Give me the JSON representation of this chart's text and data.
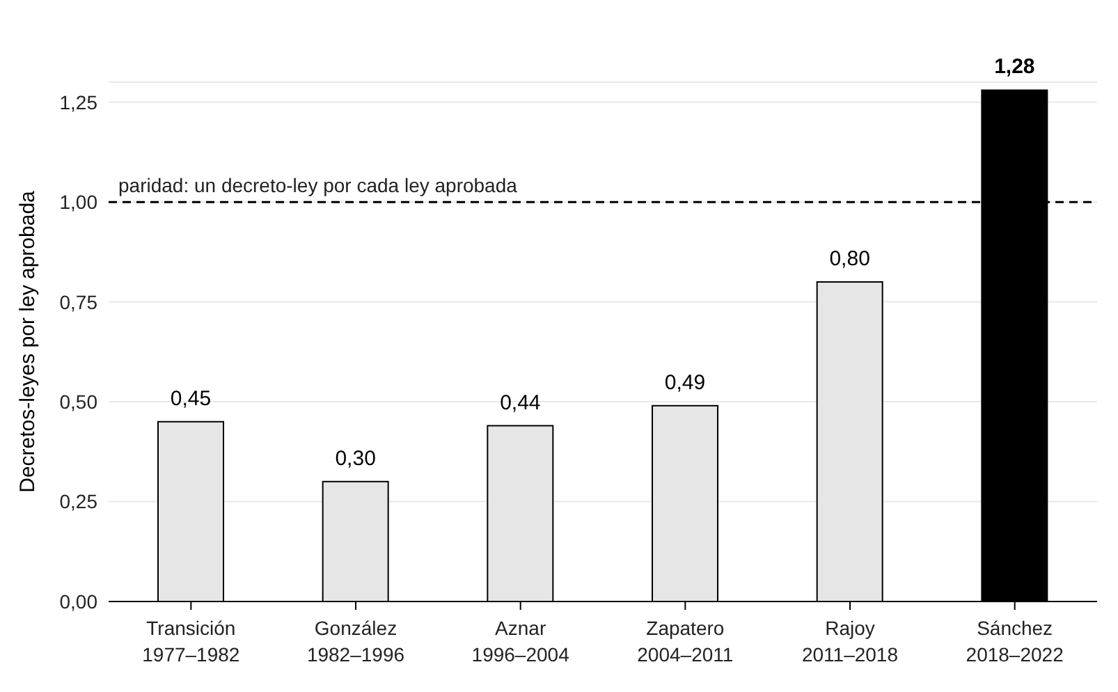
{
  "chart_data": {
    "type": "bar",
    "ylabel": "Decretos-leyes por ley aprobada",
    "categories": [
      "Transición\n1977–1982",
      "González\n1982–1996",
      "Aznar\n1996–2004",
      "Zapatero\n2004–2011",
      "Rajoy\n2011–2018",
      "Sánchez\n2018–2022"
    ],
    "values": [
      0.45,
      0.3,
      0.44,
      0.49,
      0.8,
      1.28
    ],
    "colors": [
      "#e6e6e6",
      "#e6e6e6",
      "#e6e6e6",
      "#e6e6e6",
      "#e6e6e6",
      "#000000"
    ],
    "ylim": [
      0,
      1.3
    ],
    "yticks": [
      {
        "value": 0,
        "label": "0,00"
      },
      {
        "value": 0.25,
        "label": "0,25"
      },
      {
        "value": 0.5,
        "label": "0,50"
      },
      {
        "value": 0.75,
        "label": "0,75"
      },
      {
        "value": 1,
        "label": "1,00"
      },
      {
        "value": 1.25,
        "label": "1,25"
      }
    ],
    "grid": "y",
    "value_labels": [
      "0,45",
      "0,30",
      "0,44",
      "0,49",
      "0,80",
      "1,28"
    ],
    "ref_lines": [
      {
        "axis": "y",
        "value": 1,
        "label": "paridad: un decreto-ley por cada ley aprobada",
        "color": "#000000",
        "line_style": "dashed"
      }
    ]
  }
}
